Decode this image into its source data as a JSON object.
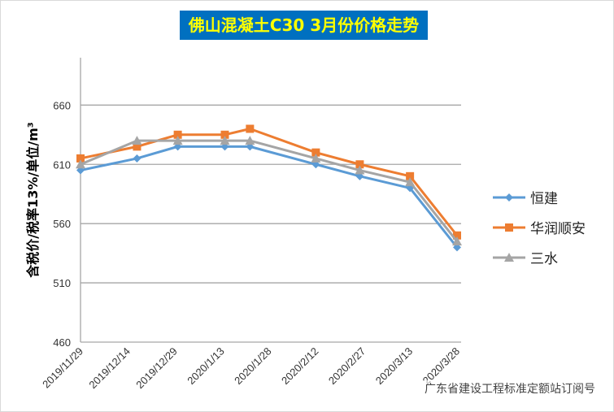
{
  "chart_data": {
    "type": "line",
    "title": "佛山混凝土C30 3月份价格走势",
    "ylabel": "含税价/税率13%/单位/m³",
    "xlabel": "",
    "ylim": [
      460,
      700
    ],
    "yticks": [
      460,
      510,
      560,
      610,
      660
    ],
    "xticks": [
      "2019/11/29",
      "2019/12/14",
      "2019/12/29",
      "2020/1/13",
      "2020/1/28",
      "2020/2/12",
      "2020/2/27",
      "2020/3/13",
      "2020/3/28"
    ],
    "x": [
      "2019/11/29",
      "2019/12/17",
      "2019/12/30",
      "2020/1/14",
      "2020/1/22",
      "2020/2/12",
      "2020/2/26",
      "2020/3/13",
      "2020/3/28"
    ],
    "grid": true,
    "legend": "right",
    "series": [
      {
        "name": "恒建",
        "color": "#5b9bd5",
        "marker": "diamond",
        "values": [
          605,
          615,
          625,
          625,
          625,
          610,
          600,
          590,
          540
        ]
      },
      {
        "name": "华润顺安",
        "color": "#ed7d31",
        "marker": "square",
        "values": [
          615,
          625,
          635,
          635,
          640,
          620,
          610,
          600,
          550
        ]
      },
      {
        "name": "三水",
        "color": "#a5a5a5",
        "marker": "triangle",
        "values": [
          610,
          630,
          630,
          630,
          630,
          615,
          605,
          595,
          545
        ]
      }
    ]
  },
  "watermark": "广东省建设工程标准定额站订阅号"
}
